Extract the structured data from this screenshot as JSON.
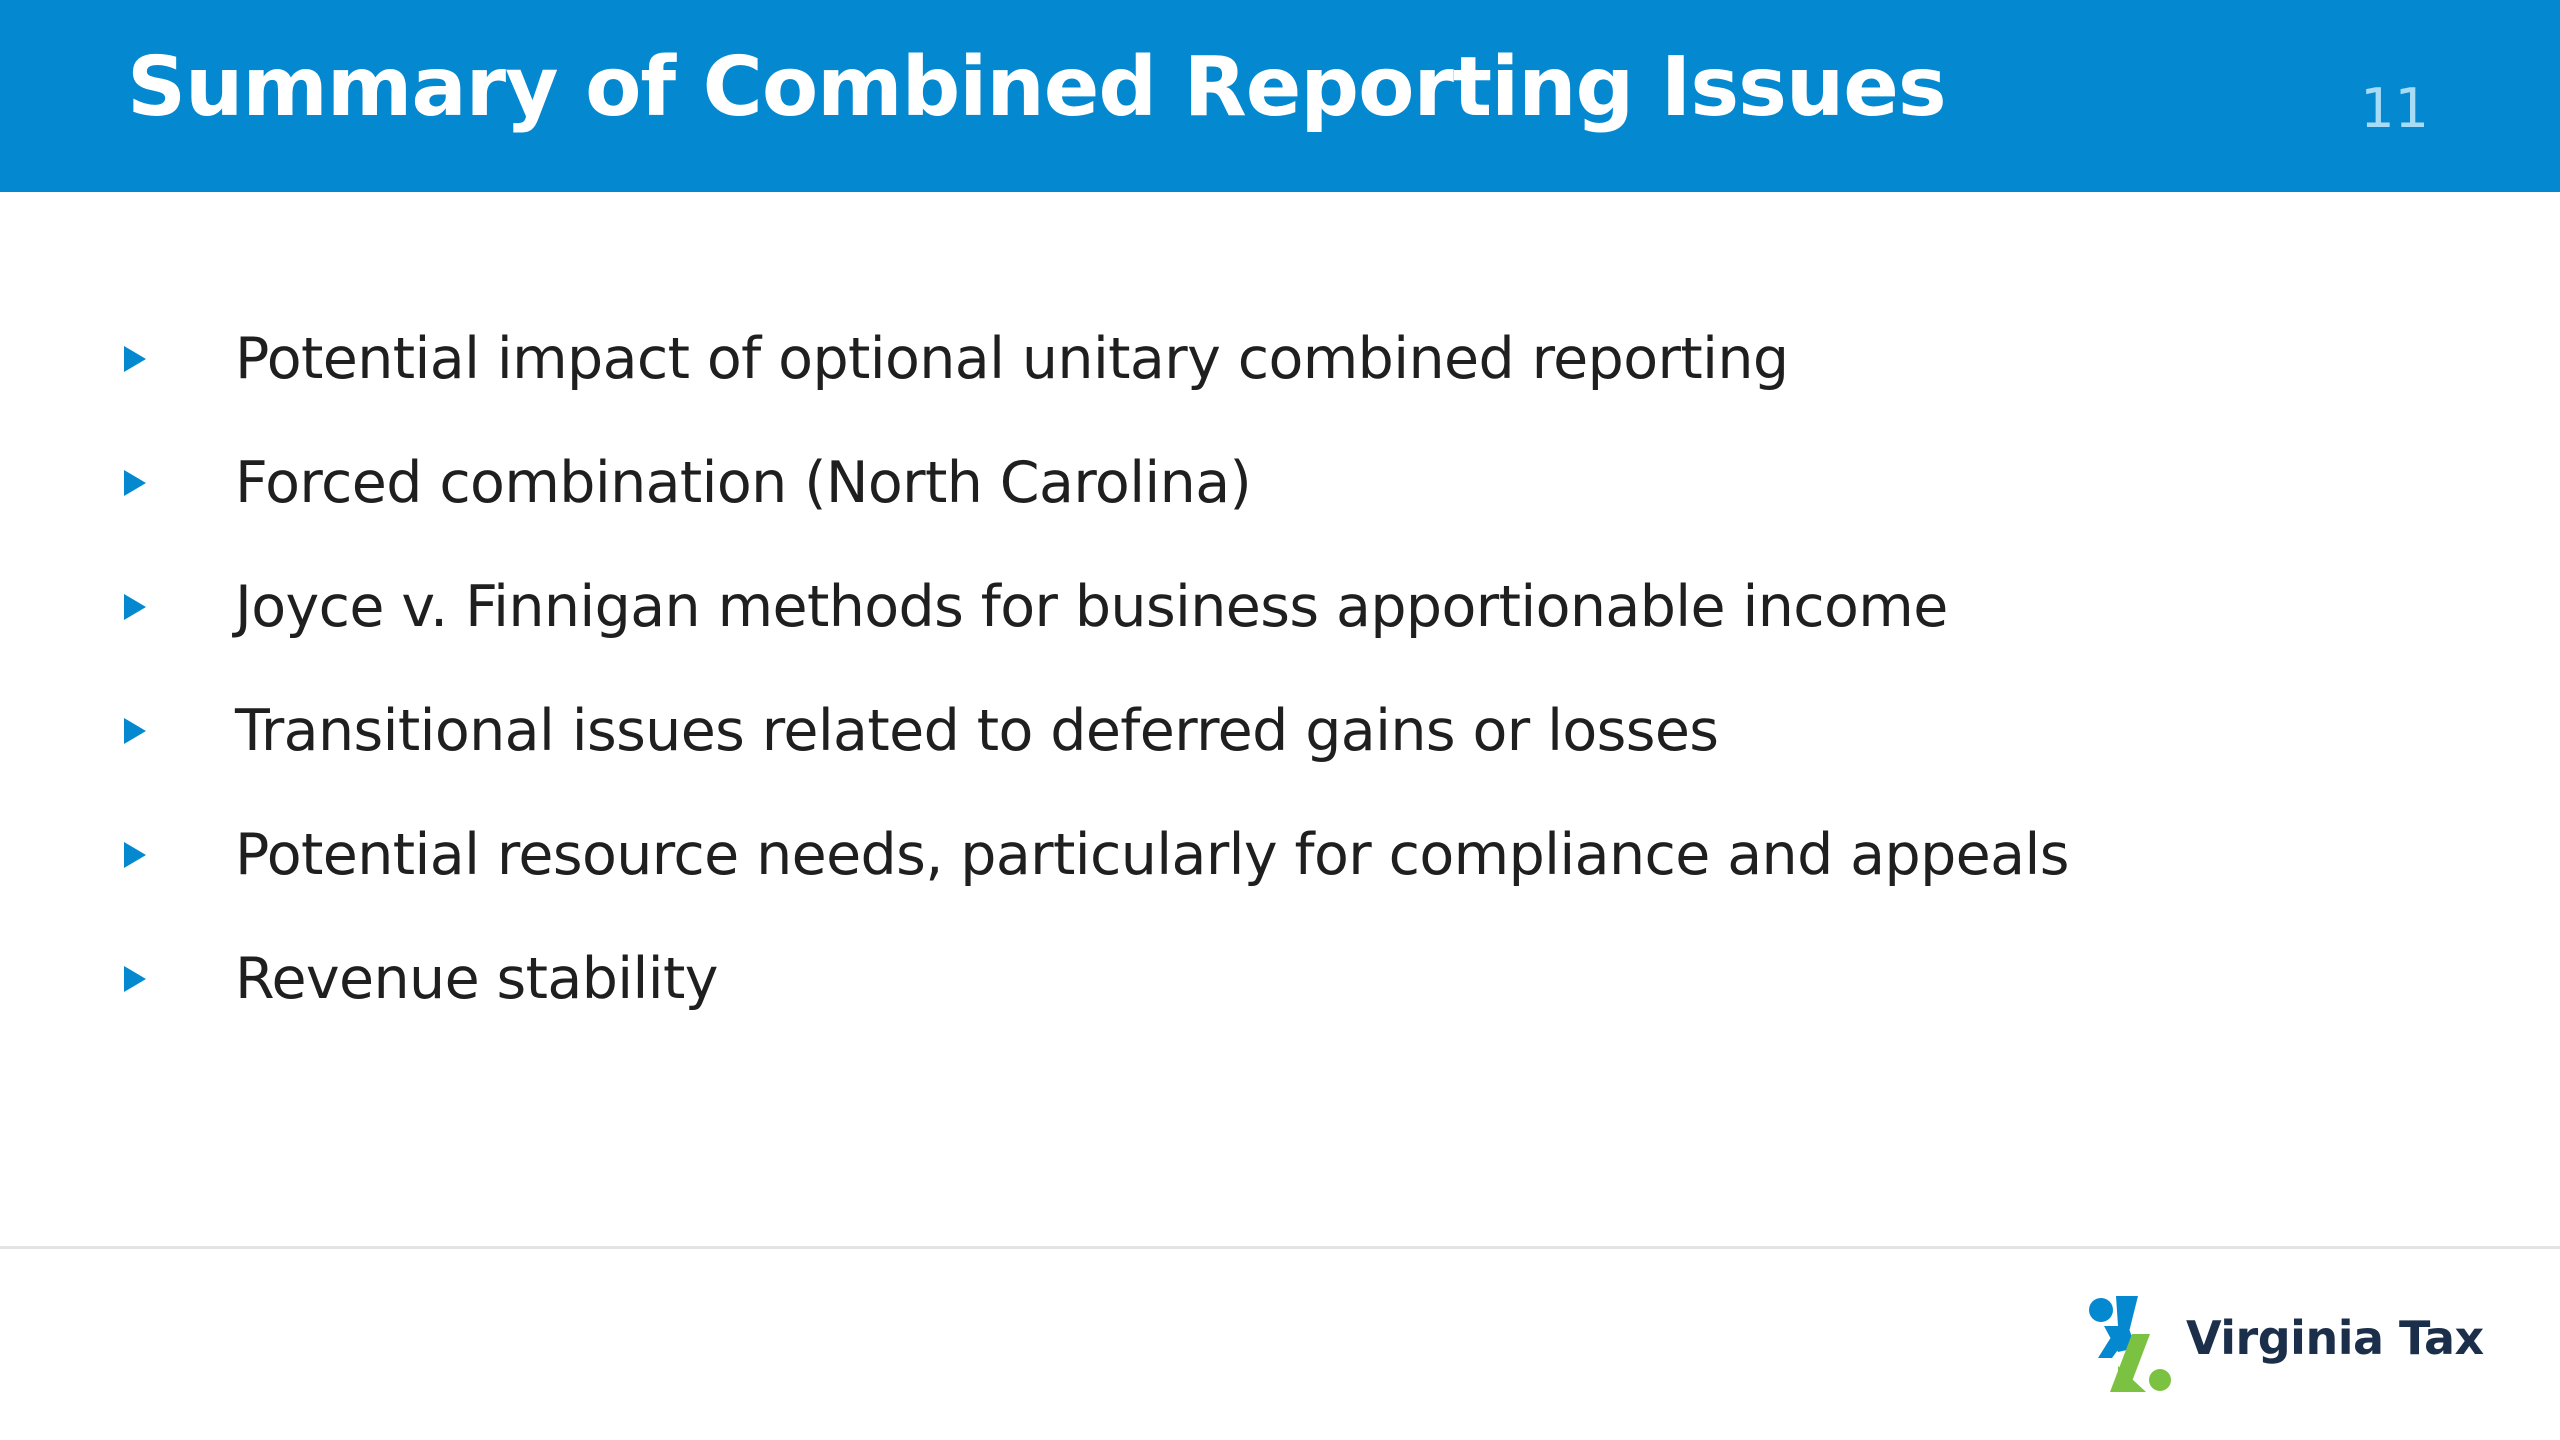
{
  "slide": {
    "title": "Summary of Combined Reporting Issues",
    "page_number": "11",
    "bullets": [
      "Potential impact of optional unitary combined reporting",
      "Forced combination (North Carolina)",
      "Joyce v. Finnigan methods for business apportionable income",
      "Transitional issues related to deferred gains or losses",
      "Potential resource needs, particularly for compliance and appeals",
      "Revenue stability"
    ]
  },
  "footer": {
    "logo_text": "Virginia Tax",
    "logo_icon": "virginia-tax-percent-mark"
  },
  "colors": {
    "header_background": "#0489d1",
    "title_text": "#ffffff",
    "page_number_text": "#a7dcf7",
    "bullet_marker": "#0489d1",
    "body_text": "#1f1f1f",
    "logo_blue": "#0489d1",
    "logo_green": "#7cc242",
    "logo_text": "#1c2f4a"
  }
}
